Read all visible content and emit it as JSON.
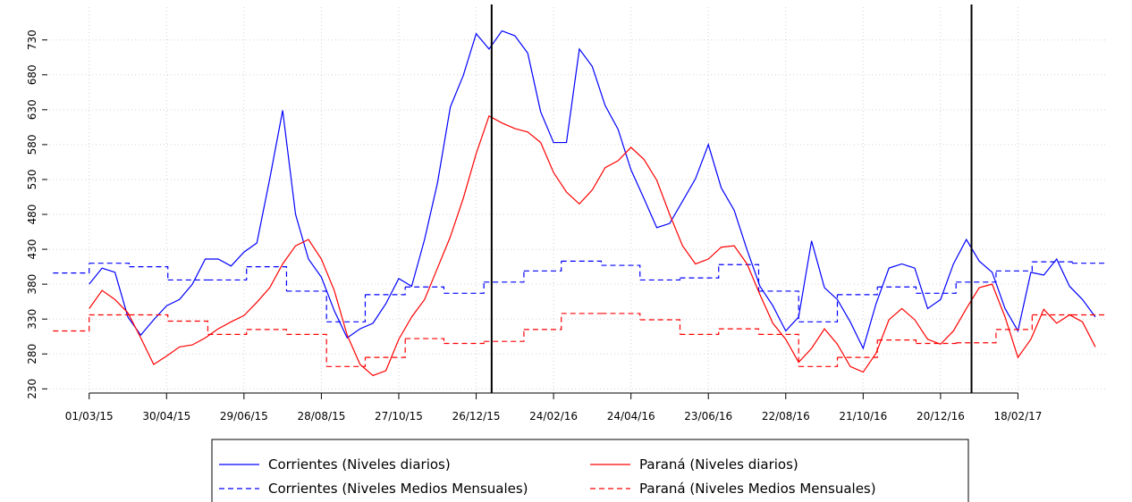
{
  "chart_data": {
    "type": "line",
    "grid": true,
    "legend": "bottom",
    "xlim": [
      "29/01/15",
      "28/04/17"
    ],
    "ylim": [
      224,
      777
    ],
    "yticks": [
      230,
      280,
      330,
      380,
      430,
      480,
      530,
      580,
      630,
      680,
      730
    ],
    "xticks": [
      "01/03/15",
      "30/04/15",
      "29/06/15",
      "28/08/15",
      "27/10/15",
      "26/12/15",
      "24/02/16",
      "24/04/16",
      "23/06/16",
      "22/08/16",
      "21/10/16",
      "20/12/16",
      "18/02/17"
    ],
    "vlines": [
      "07/01/16",
      "13/01/17"
    ],
    "vline_color": "#000000",
    "series": [
      {
        "name": "Corrientes (Niveles diarios)",
        "color": "#0000ff",
        "dashed": false,
        "step": false,
        "x": [
          "01/03/15",
          "11/03/15",
          "21/03/15",
          "31/03/15",
          "10/04/15",
          "20/04/15",
          "30/04/15",
          "10/05/15",
          "20/05/15",
          "30/05/15",
          "09/06/15",
          "19/06/15",
          "29/06/15",
          "09/07/15",
          "19/07/15",
          "29/07/15",
          "08/08/15",
          "18/08/15",
          "28/08/15",
          "07/09/15",
          "17/09/15",
          "27/09/15",
          "07/10/15",
          "17/10/15",
          "27/10/15",
          "06/11/15",
          "16/11/15",
          "26/11/15",
          "06/12/15",
          "16/12/15",
          "26/12/15",
          "05/01/16",
          "15/01/16",
          "25/01/16",
          "04/02/16",
          "14/02/16",
          "24/02/16",
          "05/03/16",
          "15/03/16",
          "25/03/16",
          "04/04/16",
          "14/04/16",
          "24/04/16",
          "04/05/16",
          "14/05/16",
          "24/05/16",
          "03/06/16",
          "13/06/16",
          "23/06/16",
          "03/07/16",
          "13/07/16",
          "23/07/16",
          "02/08/16",
          "12/08/16",
          "22/08/16",
          "01/09/16",
          "11/09/16",
          "21/09/16",
          "01/10/16",
          "11/10/16",
          "21/10/16",
          "31/10/16",
          "10/11/16",
          "20/11/16",
          "30/11/16",
          "10/12/16",
          "20/12/16",
          "30/12/16",
          "09/01/17",
          "19/01/17",
          "29/01/17",
          "08/02/17",
          "18/02/17",
          "28/02/17",
          "10/03/17",
          "20/03/17",
          "30/03/17",
          "09/04/17",
          "19/04/17"
        ],
        "values": [
          380,
          403,
          397,
          333,
          307,
          329,
          349,
          358,
          380,
          416,
          416,
          406,
          426,
          439,
          531,
          629,
          480,
          416,
          390,
          342,
          303,
          316,
          324,
          352,
          388,
          377,
          444,
          525,
          634,
          679,
          739,
          717,
          743,
          736,
          711,
          627,
          583,
          583,
          717,
          692,
          636,
          602,
          544,
          503,
          461,
          467,
          499,
          531,
          580,
          518,
          486,
          429,
          377,
          349,
          313,
          333,
          442,
          375,
          358,
          326,
          288,
          352,
          403,
          409,
          403,
          345,
          358,
          409,
          444,
          413,
          397,
          345,
          313,
          397,
          393,
          416,
          377,
          358,
          333
        ]
      },
      {
        "name": "Corrientes (Niveles Medios Mensuales)",
        "color": "#0000ff",
        "dashed": true,
        "step": true,
        "x": [
          "01/02/15",
          "01/03/15",
          "01/04/15",
          "01/05/15",
          "01/06/15",
          "01/07/15",
          "01/08/15",
          "01/09/15",
          "01/10/15",
          "01/11/15",
          "01/12/15",
          "01/01/16",
          "01/02/16",
          "01/03/16",
          "01/04/16",
          "01/05/16",
          "01/06/16",
          "01/07/16",
          "01/08/16",
          "01/09/16",
          "01/10/16",
          "01/11/16",
          "01/12/16",
          "01/01/17",
          "01/02/17",
          "01/03/17",
          "01/04/17"
        ],
        "values": [
          396,
          410,
          405,
          386,
          386,
          405,
          370,
          326,
          365,
          376,
          367,
          383,
          399,
          413,
          407,
          386,
          389,
          408,
          370,
          326,
          365,
          376,
          367,
          383,
          399,
          412,
          410
        ]
      },
      {
        "name": "Paraná (Niveles diarios)",
        "color": "#ff0000",
        "dashed": false,
        "step": false,
        "x": [
          "01/03/15",
          "11/03/15",
          "21/03/15",
          "31/03/15",
          "10/04/15",
          "20/04/15",
          "30/04/15",
          "10/05/15",
          "20/05/15",
          "30/05/15",
          "09/06/15",
          "19/06/15",
          "29/06/15",
          "09/07/15",
          "19/07/15",
          "29/07/15",
          "08/08/15",
          "18/08/15",
          "28/08/15",
          "07/09/15",
          "17/09/15",
          "27/09/15",
          "07/10/15",
          "17/10/15",
          "27/10/15",
          "06/11/15",
          "16/11/15",
          "26/11/15",
          "06/12/15",
          "16/12/15",
          "26/12/15",
          "05/01/16",
          "15/01/16",
          "25/01/16",
          "04/02/16",
          "14/02/16",
          "24/02/16",
          "05/03/16",
          "15/03/16",
          "25/03/16",
          "04/04/16",
          "14/04/16",
          "24/04/16",
          "04/05/16",
          "14/05/16",
          "24/05/16",
          "03/06/16",
          "13/06/16",
          "23/06/16",
          "03/07/16",
          "13/07/16",
          "23/07/16",
          "02/08/16",
          "12/08/16",
          "22/08/16",
          "01/09/16",
          "11/09/16",
          "21/09/16",
          "01/10/16",
          "11/10/16",
          "21/10/16",
          "31/10/16",
          "10/11/16",
          "20/11/16",
          "30/11/16",
          "10/12/16",
          "20/12/16",
          "30/12/16",
          "09/01/17",
          "19/01/17",
          "29/01/17",
          "08/02/17",
          "18/02/17",
          "28/02/17",
          "10/03/17",
          "20/03/17",
          "30/03/17",
          "09/04/17",
          "19/04/17"
        ],
        "values": [
          345,
          371,
          358,
          339,
          303,
          265,
          277,
          290,
          293,
          303,
          316,
          326,
          335,
          354,
          375,
          409,
          435,
          444,
          416,
          371,
          307,
          265,
          249,
          256,
          301,
          333,
          358,
          403,
          448,
          503,
          567,
          621,
          611,
          603,
          598,
          583,
          540,
          512,
          495,
          515,
          547,
          557,
          576,
          559,
          529,
          480,
          435,
          409,
          416,
          433,
          435,
          409,
          365,
          324,
          301,
          268,
          288,
          316,
          294,
          262,
          254,
          281,
          329,
          345,
          329,
          301,
          294,
          313,
          345,
          375,
          380,
          333,
          275,
          301,
          344,
          324,
          336,
          326,
          290
        ]
      },
      {
        "name": "Paraná (Niveles Medios Mensuales)",
        "color": "#ff0000",
        "dashed": true,
        "step": true,
        "x": [
          "01/02/15",
          "01/03/15",
          "01/04/15",
          "01/05/15",
          "01/06/15",
          "01/07/15",
          "01/08/15",
          "01/09/15",
          "01/10/15",
          "01/11/15",
          "01/12/15",
          "01/01/16",
          "01/02/16",
          "01/03/16",
          "01/04/16",
          "01/05/16",
          "01/06/16",
          "01/07/16",
          "01/08/16",
          "01/09/16",
          "01/10/16",
          "01/11/16",
          "01/12/16",
          "01/01/17",
          "01/02/17",
          "01/03/17",
          "01/04/17"
        ],
        "values": [
          313,
          336,
          336,
          327,
          308,
          315,
          308,
          262,
          275,
          302,
          295,
          298,
          315,
          338,
          338,
          329,
          308,
          316,
          308,
          262,
          275,
          300,
          295,
          296,
          315,
          336,
          336
        ]
      }
    ]
  }
}
